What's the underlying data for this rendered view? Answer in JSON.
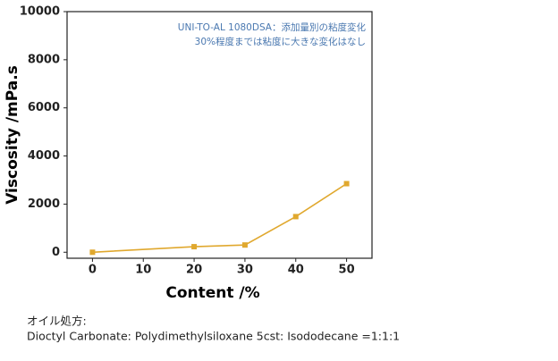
{
  "chart_data": {
    "type": "line",
    "x": [
      0,
      20,
      30,
      40,
      50
    ],
    "series": [
      {
        "name": "UNI-TO-AL 1080DSA",
        "color": "#e0a82e",
        "values": [
          0,
          230,
          300,
          1480,
          2850
        ]
      }
    ],
    "xlabel": "Content /%",
    "ylabel": "Viscosity /mPa.s",
    "xlim": [
      -5,
      55
    ],
    "xticks": [
      0,
      10,
      20,
      30,
      40,
      50
    ],
    "ylim": [
      -250,
      10000
    ],
    "yticks": [
      0,
      2000,
      4000,
      6000,
      8000,
      10000
    ],
    "annotations": [
      "UNI-TO-AL 1080DSA：添加量別の粘度変化",
      "30%程度までは粘度に大きな変化はなし"
    ],
    "grid": false
  },
  "notes": [
    "オイル処方:",
    "Dioctyl Carbonate: Polydimethylsiloxane 5cst: Isododecane =1:1:1"
  ]
}
